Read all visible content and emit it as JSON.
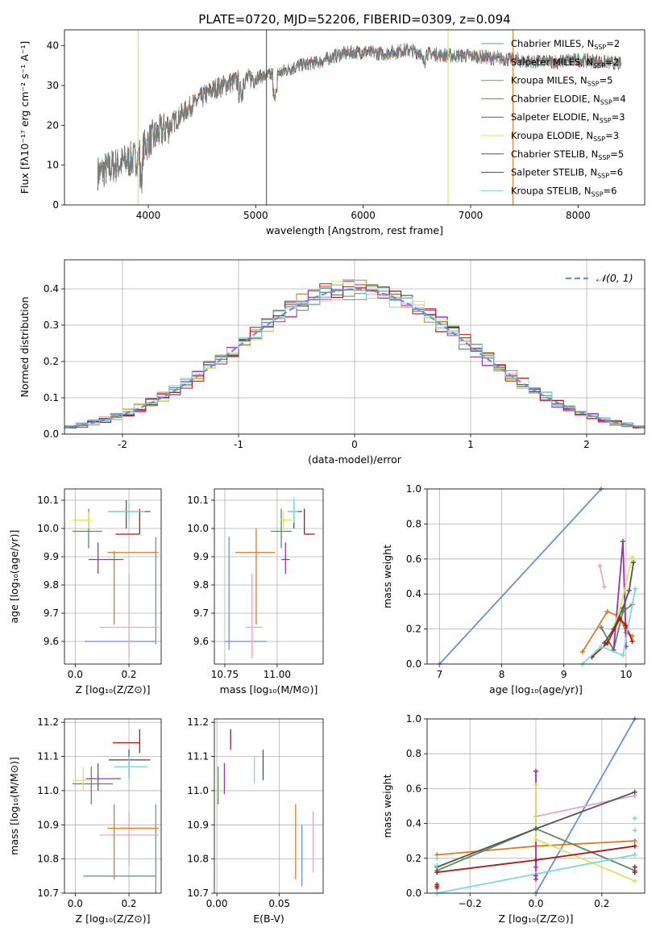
{
  "figure_title": "PLATE=0720, MJD=52206, FIBERID=0309, z=0.094",
  "colors": {
    "Chabrier MILES": "#6a8fd8",
    "Salpeter MILES": "#e7a3c4",
    "Kroupa MILES": "#e0781f",
    "Chabrier ELODIE": "#5c8a5c",
    "Salpeter ELODIE": "#9b30b0",
    "Kroupa ELODIE": "#d4e85a",
    "Chabrier STELIB": "#555555",
    "Salpeter STELIB": "#b01515",
    "Kroupa STELIB": "#7ed8d8"
  },
  "chart_data": [
    {
      "id": "spectrum",
      "type": "line",
      "xlabel": "wavelength [Angstrom, rest frame]",
      "ylabel": "Flux [fλ10⁻¹⁷ erg cm⁻² s⁻¹ A⁻¹]",
      "xlim": [
        3220,
        8620
      ],
      "ylim": [
        0,
        44
      ],
      "xticks": [
        4000,
        5000,
        6000,
        7000,
        8000
      ],
      "yticks": [
        0,
        10,
        20,
        30,
        40
      ],
      "grid": false,
      "legend_position": "top-right",
      "spectrum_range": [
        3530,
        8400
      ],
      "continuum_knots": [
        [
          3530,
          8
        ],
        [
          3700,
          10
        ],
        [
          3900,
          12
        ],
        [
          4000,
          16
        ],
        [
          4200,
          20
        ],
        [
          4400,
          25
        ],
        [
          4600,
          29
        ],
        [
          4800,
          31
        ],
        [
          5000,
          32
        ],
        [
          5200,
          33
        ],
        [
          5400,
          35
        ],
        [
          5600,
          36
        ],
        [
          5800,
          38
        ],
        [
          6000,
          38.5
        ],
        [
          6200,
          38
        ],
        [
          6400,
          39
        ],
        [
          6600,
          38
        ],
        [
          6800,
          37.5
        ],
        [
          7000,
          37.5
        ],
        [
          7200,
          37
        ],
        [
          7400,
          36.5
        ],
        [
          7600,
          36
        ],
        [
          7800,
          36
        ],
        [
          8000,
          36.5
        ],
        [
          8200,
          36
        ],
        [
          8400,
          35.5
        ]
      ],
      "vertical_lines": [
        {
          "x": 3905,
          "color": "Kroupa ELODIE"
        },
        {
          "x": 5100,
          "color": "Chabrier STELIB"
        },
        {
          "x": 6790,
          "color": "Kroupa ELODIE"
        },
        {
          "x": 7395,
          "color": "Kroupa MILES"
        }
      ],
      "series": [
        {
          "name": "Chabrier MILES",
          "label": "Chabrier MILES, N",
          "sub": "SSP",
          "count": "=2"
        },
        {
          "name": "Salpeter MILES",
          "label": "Salpeter MILES, N",
          "sub": "SSP",
          "count": "=2"
        },
        {
          "name": "Kroupa MILES",
          "label": "Kroupa MILES, N",
          "sub": "SSP",
          "count": "=5"
        },
        {
          "name": "Chabrier ELODIE",
          "label": "Chabrier ELODIE, N",
          "sub": "SSP",
          "count": "=4"
        },
        {
          "name": "Salpeter ELODIE",
          "label": "Salpeter ELODIE, N",
          "sub": "SSP",
          "count": "=3"
        },
        {
          "name": "Kroupa ELODIE",
          "label": "Kroupa ELODIE, N",
          "sub": "SSP",
          "count": "=3"
        },
        {
          "name": "Chabrier STELIB",
          "label": "Chabrier STELIB, N",
          "sub": "SSP",
          "count": "=5"
        },
        {
          "name": "Salpeter STELIB",
          "label": "Salpeter STELIB, N",
          "sub": "SSP",
          "count": "=6"
        },
        {
          "name": "Kroupa STELIB",
          "label": "Kroupa STELIB, N",
          "sub": "SSP",
          "count": "=6"
        }
      ]
    },
    {
      "id": "residuals",
      "type": "bar",
      "xlabel": "(data-model)/error",
      "ylabel": "Normed distribution",
      "xlim": [
        -2.5,
        2.5
      ],
      "ylim": [
        0,
        0.48
      ],
      "xticks": [
        -2,
        -1,
        0,
        1,
        2
      ],
      "yticks": [
        0.0,
        0.1,
        0.2,
        0.3,
        0.4
      ],
      "grid": true,
      "bin_width": 0.1,
      "legend_position": "top-right",
      "gaussian_label": "𝒩(0, 1)",
      "gaussian_color": "#6a8fd8"
    },
    {
      "id": "age_vs_Z",
      "type": "scatter",
      "xlabel": "Z [log₁₀(Z/Z⊙)]",
      "ylabel": "age  [log₁₀(age/yr)]",
      "xlim": [
        -0.04,
        0.32
      ],
      "ylim": [
        9.52,
        10.14
      ],
      "xticks": [
        0.0,
        0.2
      ],
      "yticks": [
        9.6,
        9.7,
        9.8,
        9.9,
        10.0,
        10.1
      ],
      "grid": true,
      "points": [
        {
          "model": "Chabrier MILES",
          "x": 0.3,
          "y": 9.6,
          "xl": 0.3,
          "xh": 0.3,
          "yl": 9.59,
          "yh": 9.97
        },
        {
          "model": "Chabrier MILES",
          "x": 0.3,
          "y": 9.6,
          "xl": 0.035,
          "xh": 0.3,
          "yl": 9.6,
          "yh": 9.6
        },
        {
          "model": "Salpeter MILES",
          "x": 0.2,
          "y": 9.65,
          "xl": 0.09,
          "xh": 0.31,
          "yl": 9.54,
          "yh": 9.84
        },
        {
          "model": "Kroupa MILES",
          "x": 0.145,
          "y": 9.915,
          "xl": 0.12,
          "xh": 0.31,
          "yl": 9.66,
          "yh": 9.92
        },
        {
          "model": "Chabrier ELODIE",
          "x": 0.05,
          "y": 9.99,
          "xl": -0.01,
          "xh": 0.1,
          "yl": 9.93,
          "yh": 10.07
        },
        {
          "model": "Salpeter ELODIE",
          "x": 0.085,
          "y": 9.89,
          "xl": 0.05,
          "xh": 0.18,
          "yl": 9.84,
          "yh": 9.95
        },
        {
          "model": "Kroupa ELODIE",
          "x": 0.05,
          "y": 10.03,
          "xl": -0.01,
          "xh": 0.06,
          "yl": 10.0,
          "yh": 10.06
        },
        {
          "model": "Chabrier STELIB",
          "x": 0.19,
          "y": 10.06,
          "xl": 0.125,
          "xh": 0.28,
          "yl": 10.0,
          "yh": 10.1
        },
        {
          "model": "Salpeter STELIB",
          "x": 0.24,
          "y": 9.98,
          "xl": 0.15,
          "xh": 0.24,
          "yl": 9.98,
          "yh": 10.07
        },
        {
          "model": "Kroupa STELIB",
          "x": 0.2,
          "y": 10.06,
          "xl": 0.12,
          "xh": 0.26,
          "yl": 10.03,
          "yh": 10.09
        }
      ]
    },
    {
      "id": "age_vs_mass",
      "type": "scatter",
      "xlabel": "mass [log₁₀(M/M⊙)]",
      "ylabel": "",
      "xlim": [
        10.7,
        11.22
      ],
      "ylim": [
        9.52,
        10.14
      ],
      "xticks": [
        10.75,
        11.0
      ],
      "xtick_labels": [
        "10.75",
        "11.00"
      ],
      "yticks": [
        9.6,
        9.7,
        9.8,
        9.9,
        10.0,
        10.1
      ],
      "grid": true,
      "points": [
        {
          "model": "Chabrier MILES",
          "x": 10.77,
          "y": 9.6,
          "xl": 10.75,
          "xh": 10.95,
          "yl": 9.57,
          "yh": 9.97
        },
        {
          "model": "Salpeter MILES",
          "x": 10.88,
          "y": 9.65,
          "xl": 10.85,
          "xh": 10.93,
          "yl": 9.54,
          "yh": 9.84
        },
        {
          "model": "Kroupa MILES",
          "x": 10.9,
          "y": 9.915,
          "xl": 10.8,
          "xh": 10.99,
          "yl": 9.66,
          "yh": 10.0
        },
        {
          "model": "Chabrier ELODIE",
          "x": 11.02,
          "y": 9.99,
          "xl": 10.97,
          "xh": 11.07,
          "yl": 9.93,
          "yh": 10.07
        },
        {
          "model": "Salpeter ELODIE",
          "x": 11.04,
          "y": 9.89,
          "xl": 11.02,
          "xh": 11.06,
          "yl": 9.84,
          "yh": 9.95
        },
        {
          "model": "Kroupa ELODIE",
          "x": 11.03,
          "y": 10.03,
          "xl": 11.01,
          "xh": 11.07,
          "yl": 10.0,
          "yh": 10.06
        },
        {
          "model": "Chabrier STELIB",
          "x": 11.08,
          "y": 10.06,
          "xl": 11.05,
          "xh": 11.12,
          "yl": 10.0,
          "yh": 10.1
        },
        {
          "model": "Salpeter STELIB",
          "x": 11.13,
          "y": 9.98,
          "xl": 11.13,
          "xh": 11.18,
          "yl": 9.98,
          "yh": 10.07
        },
        {
          "model": "Kroupa STELIB",
          "x": 11.08,
          "y": 10.06,
          "xl": 11.05,
          "xh": 11.1,
          "yl": 10.02,
          "yh": 10.11
        }
      ]
    },
    {
      "id": "weight_vs_age",
      "type": "line",
      "xlabel": "age  [log₁₀(age/yr)]",
      "ylabel": "mass weight",
      "xlim": [
        6.8,
        10.3
      ],
      "ylim": [
        0,
        1.0
      ],
      "xticks": [
        7,
        8,
        9,
        10
      ],
      "yticks": [
        0.0,
        0.2,
        0.4,
        0.6,
        0.8,
        1.0
      ],
      "grid": true,
      "series": [
        {
          "name": "Chabrier MILES",
          "x": [
            7.0,
            9.6
          ],
          "y": [
            0.0,
            1.0
          ]
        },
        {
          "name": "Salpeter MILES",
          "x": [
            9.58,
            9.65
          ],
          "y": [
            0.56,
            0.44
          ]
        },
        {
          "name": "Kroupa MILES",
          "x": [
            9.3,
            9.7,
            9.9,
            10.0,
            10.1
          ],
          "y": [
            0.07,
            0.3,
            0.27,
            0.18,
            0.16
          ]
        },
        {
          "name": "Chabrier ELODIE",
          "x": [
            9.6,
            9.8,
            9.95,
            10.1
          ],
          "y": [
            0.21,
            0.08,
            0.3,
            0.34
          ]
        },
        {
          "name": "Salpeter ELODIE",
          "x": [
            9.8,
            9.95,
            10.0
          ],
          "y": [
            0.08,
            0.7,
            0.1
          ]
        },
        {
          "name": "Kroupa ELODIE",
          "x": [
            9.7,
            9.9,
            10.1
          ],
          "y": [
            0.11,
            0.31,
            0.61
          ]
        },
        {
          "name": "Chabrier STELIB",
          "x": [
            9.65,
            9.8,
            9.95,
            10.05,
            10.12
          ],
          "y": [
            0.12,
            0.2,
            0.32,
            0.42,
            0.58
          ]
        },
        {
          "name": "Salpeter STELIB",
          "x": [
            9.45,
            9.7,
            9.9,
            10.0,
            10.1
          ],
          "y": [
            0.04,
            0.12,
            0.26,
            0.22,
            0.13
          ]
        },
        {
          "name": "Kroupa STELIB",
          "x": [
            9.3,
            9.6,
            9.95,
            10.15
          ],
          "y": [
            0.0,
            0.1,
            0.05,
            0.43
          ]
        }
      ]
    },
    {
      "id": "mass_vs_Z",
      "type": "scatter",
      "xlabel": "Z [log₁₀(Z/Z⊙)]",
      "ylabel": "mass [log₁₀(M/M⊙)]",
      "xlim": [
        -0.04,
        0.32
      ],
      "ylim": [
        10.7,
        11.21
      ],
      "xticks": [
        0.0,
        0.2
      ],
      "yticks": [
        10.7,
        10.8,
        10.9,
        11.0,
        11.1,
        11.2
      ],
      "grid": true,
      "points": [
        {
          "model": "Chabrier MILES",
          "x": 0.3,
          "y": 10.75,
          "xl": 0.03,
          "xh": 0.3,
          "yl": 10.7,
          "yh": 10.96
        },
        {
          "model": "Salpeter MILES",
          "x": 0.2,
          "y": 10.87,
          "xl": 0.09,
          "xh": 0.31,
          "yl": 10.78,
          "yh": 10.94
        },
        {
          "model": "Kroupa MILES",
          "x": 0.145,
          "y": 10.89,
          "xl": 0.12,
          "xh": 0.31,
          "yl": 10.74,
          "yh": 10.96
        },
        {
          "model": "Chabrier ELODIE",
          "x": 0.06,
          "y": 11.02,
          "xl": -0.01,
          "xh": 0.14,
          "yl": 10.96,
          "yh": 11.07
        },
        {
          "model": "Salpeter ELODIE",
          "x": 0.085,
          "y": 11.035,
          "xl": 0.04,
          "xh": 0.17,
          "yl": 11.0,
          "yh": 11.08
        },
        {
          "model": "Kroupa ELODIE",
          "x": 0.03,
          "y": 11.03,
          "xl": -0.01,
          "xh": 0.06,
          "yl": 11.0,
          "yh": 11.07
        },
        {
          "model": "Chabrier STELIB",
          "x": 0.2,
          "y": 11.09,
          "xl": 0.125,
          "xh": 0.28,
          "yl": 11.04,
          "yh": 11.12
        },
        {
          "model": "Salpeter STELIB",
          "x": 0.24,
          "y": 11.14,
          "xl": 0.14,
          "xh": 0.24,
          "yl": 11.11,
          "yh": 11.18
        },
        {
          "model": "Kroupa STELIB",
          "x": 0.2,
          "y": 11.07,
          "xl": 0.145,
          "xh": 0.27,
          "yl": 11.03,
          "yh": 11.1
        }
      ]
    },
    {
      "id": "mass_vs_ebv",
      "type": "scatter",
      "xlabel": "E(B-V)",
      "ylabel": "",
      "xlim": [
        -0.002,
        0.085
      ],
      "ylim": [
        10.7,
        11.21
      ],
      "xticks": [
        0.0,
        0.05
      ],
      "yticks": [
        10.7,
        10.8,
        10.9,
        11.0,
        11.1,
        11.2
      ],
      "grid": true,
      "points": [
        {
          "model": "Chabrier MILES",
          "x": 0.068,
          "y": 10.82,
          "yl": 10.72,
          "yh": 10.9
        },
        {
          "model": "Salpeter MILES",
          "x": 0.077,
          "y": 10.87,
          "yl": 10.76,
          "yh": 10.94
        },
        {
          "model": "Kroupa MILES",
          "x": 0.063,
          "y": 10.88,
          "yl": 10.74,
          "yh": 10.96
        },
        {
          "model": "Chabrier ELODIE",
          "x": 0.001,
          "y": 11.02,
          "yl": 10.96,
          "yh": 11.07
        },
        {
          "model": "Salpeter ELODIE",
          "x": 0.006,
          "y": 11.03,
          "yl": 10.99,
          "yh": 11.08
        },
        {
          "model": "Kroupa ELODIE",
          "x": 0.0015,
          "y": 11.03,
          "yl": 10.98,
          "yh": 11.06
        },
        {
          "model": "Chabrier STELIB",
          "x": 0.037,
          "y": 11.08,
          "yl": 11.03,
          "yh": 11.12
        },
        {
          "model": "Salpeter STELIB",
          "x": 0.011,
          "y": 11.15,
          "yl": 11.12,
          "yh": 11.18
        },
        {
          "model": "Kroupa STELIB",
          "x": 0.03,
          "y": 11.06,
          "yl": 11.02,
          "yh": 11.1
        }
      ]
    },
    {
      "id": "weight_vs_Z",
      "type": "line",
      "xlabel": "Z [log₁₀(Z/Z⊙)]",
      "ylabel": "mass weight",
      "xlim": [
        -0.33,
        0.33
      ],
      "ylim": [
        0,
        1.0
      ],
      "xticks": [
        -0.2,
        0.0,
        0.2
      ],
      "xtick_labels": [
        "−0.2",
        "0.0",
        "0.2"
      ],
      "yticks": [
        0.0,
        0.2,
        0.4,
        0.6,
        0.8,
        1.0
      ],
      "grid": true,
      "series": [
        {
          "name": "Chabrier MILES",
          "x": [
            0.0,
            0.3
          ],
          "y": [
            0.0,
            1.0
          ]
        },
        {
          "name": "Salpeter MILES",
          "x": [
            0.0,
            0.3
          ],
          "y": [
            0.44,
            0.56
          ]
        },
        {
          "name": "Kroupa MILES",
          "x": [
            -0.3,
            0.0,
            0.3
          ],
          "y": [
            0.22,
            0.27,
            0.3
          ]
        },
        {
          "name": "Chabrier ELODIE",
          "x": [
            -0.3,
            0.0,
            0.3
          ],
          "y": [
            0.13,
            0.37,
            0.13
          ]
        },
        {
          "name": "Salpeter ELODIE",
          "x": [
            0.0,
            0.0
          ],
          "y": [
            0.7,
            0.08
          ]
        },
        {
          "name": "Kroupa ELODIE",
          "x": [
            0.0,
            0.0,
            0.3
          ],
          "y": [
            0.62,
            0.31,
            0.07
          ]
        },
        {
          "name": "Chabrier STELIB",
          "x": [
            -0.3,
            0.0,
            0.3
          ],
          "y": [
            0.15,
            0.37,
            0.58
          ]
        },
        {
          "name": "Salpeter STELIB",
          "x": [
            -0.3,
            0.0,
            0.3
          ],
          "y": [
            0.12,
            0.19,
            0.27
          ]
        },
        {
          "name": "Kroupa STELIB",
          "x": [
            -0.3,
            0.0,
            0.3
          ],
          "y": [
            0.0,
            0.11,
            0.22
          ]
        }
      ],
      "error_markers": [
        {
          "name": "Chabrier STELIB",
          "x": -0.3,
          "ys": [
            0.05,
            0.03
          ]
        },
        {
          "name": "Salpeter STELIB",
          "x": -0.3,
          "ys": [
            0.04
          ]
        },
        {
          "name": "Kroupa STELIB",
          "x": -0.3,
          "ys": [
            0.16,
            0.2
          ]
        },
        {
          "name": "Kroupa STELIB",
          "x": 0.3,
          "ys": [
            0.36,
            0.43
          ]
        },
        {
          "name": "Salpeter STELIB",
          "x": 0.3,
          "ys": [
            0.15,
            0.12
          ]
        },
        {
          "name": "Salpeter ELODIE",
          "x": 0.0,
          "ys": [
            0.15,
            0.1
          ]
        }
      ]
    }
  ]
}
